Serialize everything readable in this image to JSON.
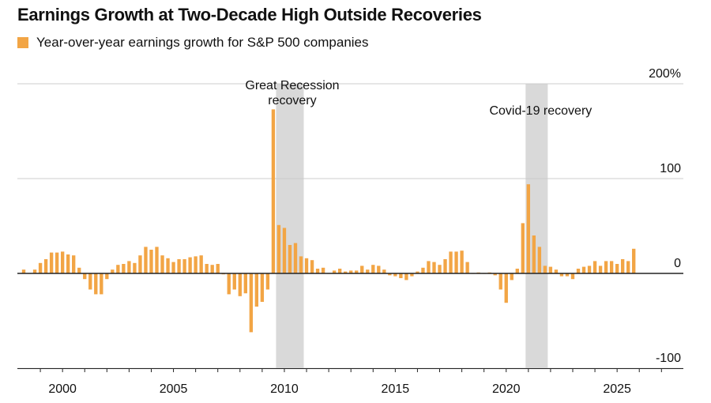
{
  "title": "Earnings Growth at Two-Decade High Outside Recoveries",
  "legend_label": "Year-over-year earnings growth for S&P 500 companies",
  "colors": {
    "bar": "#f2a545",
    "shade": "#d9d9d9",
    "grid": "#cccccc",
    "zero": "#222222"
  },
  "chart_data": {
    "type": "bar",
    "title": "Earnings Growth at Two-Decade High Outside Recoveries",
    "series_name": "Year-over-year earnings growth for S&P 500 companies",
    "unit": "%",
    "xlim": [
      1998.0,
      2028.2
    ],
    "ylim": [
      -100,
      200
    ],
    "y_ticks": [
      {
        "value": 200,
        "label": "200%"
      },
      {
        "value": 100,
        "label": "100"
      },
      {
        "value": 0,
        "label": "0"
      },
      {
        "value": -100,
        "label": "-100"
      }
    ],
    "x_ticks": [
      {
        "value": 2000,
        "label": "2000"
      },
      {
        "value": 2005,
        "label": "2005"
      },
      {
        "value": 2010,
        "label": "2010"
      },
      {
        "value": 2015,
        "label": "2015"
      },
      {
        "value": 2020,
        "label": "2020"
      },
      {
        "value": 2025,
        "label": "2025"
      }
    ],
    "grid": true,
    "legend_position": "top-left",
    "shaded_periods": [
      {
        "start": 2009.625,
        "end": 2010.875,
        "label_lines": [
          "Great Recession",
          "recovery"
        ]
      },
      {
        "start": 2020.875,
        "end": 2021.875,
        "label_lines": [
          "Covid-19 recovery"
        ]
      }
    ],
    "start_year": 1998.25,
    "quarter_step": 0.25,
    "values": [
      4,
      0,
      4,
      11,
      15,
      22,
      22,
      23,
      20,
      19,
      6,
      -6,
      -17,
      -22,
      -22,
      -6,
      4,
      9,
      10,
      13,
      11,
      19,
      28,
      25,
      28,
      19,
      16,
      12,
      15,
      15,
      17,
      18,
      19,
      10,
      9,
      10,
      -1,
      -22,
      -17,
      -24,
      -21,
      -62,
      -35,
      -30,
      -17,
      173,
      51,
      48,
      30,
      32,
      18,
      16,
      14,
      5,
      6,
      0,
      3,
      5,
      2,
      3,
      3,
      8,
      4,
      9,
      8,
      4,
      -2,
      -3,
      -5,
      -7,
      -3,
      2,
      6,
      13,
      12,
      9,
      15,
      23,
      23,
      24,
      12,
      0,
      1,
      0,
      1,
      -2,
      -17,
      -31,
      -7,
      5,
      53,
      94,
      40,
      28,
      8,
      7,
      4,
      -3,
      -3,
      -6,
      5,
      7,
      8,
      13,
      8,
      13,
      13,
      10,
      15,
      13,
      26
    ]
  }
}
